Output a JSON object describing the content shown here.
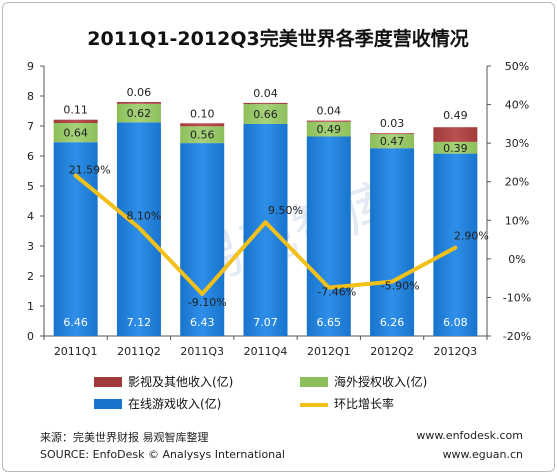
{
  "colors": {
    "online": "#1874cd",
    "overseas": "#8cbf5a",
    "other": "#a33a3a",
    "line": "#f2c019",
    "watermark": "#dce4ef"
  },
  "chart_data": {
    "type": "bar",
    "stacked": true,
    "title": "2011Q1-2012Q3完美世界各季度营收情况",
    "categories": [
      "2011Q1",
      "2011Q2",
      "2011Q3",
      "2011Q4",
      "2012Q1",
      "2012Q2",
      "2012Q3"
    ],
    "series": [
      {
        "name": "在线游戏收入(亿)",
        "values": [
          6.46,
          7.12,
          6.43,
          7.07,
          6.65,
          6.26,
          6.08
        ],
        "labels": [
          "6.46",
          "7.12",
          "6.43",
          "7.07",
          "6.65",
          "6.26",
          "6.08"
        ]
      },
      {
        "name": "海外授权收入(亿)",
        "values": [
          0.64,
          0.62,
          0.56,
          0.66,
          0.49,
          0.47,
          0.39
        ],
        "labels": [
          "0.64",
          "0.62",
          "0.56",
          "0.66",
          "0.49",
          "0.47",
          "0.39"
        ]
      },
      {
        "name": "影视及其他收入(亿)",
        "values": [
          0.11,
          0.06,
          0.1,
          0.04,
          0.04,
          0.03,
          0.49
        ],
        "labels": [
          "0.11",
          "0.06",
          "0.10",
          "0.04",
          "0.04",
          "0.03",
          "0.49"
        ]
      }
    ],
    "line_series": {
      "name": "环比增长率",
      "values": [
        21.59,
        8.1,
        -9.1,
        9.5,
        -7.46,
        -5.9,
        2.9
      ],
      "labels": [
        "21.59%",
        "8.10%",
        "-9.10%",
        "9.50%",
        "-7.46%",
        "-5.90%",
        "2.90%"
      ]
    },
    "ylim": [
      0,
      9
    ],
    "yticks": [
      "0",
      "1",
      "2",
      "3",
      "4",
      "5",
      "6",
      "7",
      "8",
      "9"
    ],
    "y2lim": [
      -20,
      50
    ],
    "y2ticks": [
      "-20%",
      "-10%",
      "0%",
      "10%",
      "20%",
      "30%",
      "40%",
      "50%"
    ],
    "legend": "bottom"
  },
  "legend": {
    "other": "影视及其他收入(亿)",
    "overseas": "海外授权收入(亿)",
    "online": "在线游戏收入(亿)",
    "line": "环比增长率"
  },
  "watermark": "易观智库",
  "footer": {
    "source_cn": "来源：完美世界财报  易观智库整理",
    "source_en": "SOURCE:  EnfoDesk © Analysys International",
    "site1": "www.enfodesk.com",
    "site2": "www.eguan.cn"
  }
}
